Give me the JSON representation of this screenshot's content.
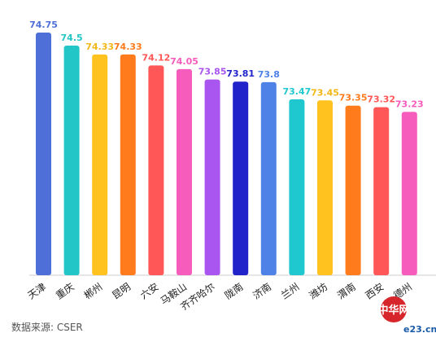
{
  "chart_data": {
    "type": "bar",
    "categories": [
      "天津",
      "重庆",
      "郴州",
      "昆明",
      "六安",
      "马鞍山",
      "齐齐哈尔",
      "陇南",
      "济南",
      "兰州",
      "潍坊",
      "渭南",
      "西安",
      "德州"
    ],
    "values": [
      74.75,
      74.5,
      74.33,
      74.33,
      74.12,
      74.05,
      73.85,
      73.81,
      73.8,
      73.47,
      73.45,
      73.35,
      73.32,
      73.23
    ],
    "value_labels": [
      "74.75",
      "74.5",
      "74.33",
      "74.33",
      "74.12",
      "74.05",
      "73.85",
      "73.81",
      "73.8",
      "73.47",
      "73.45",
      "73.35",
      "73.32",
      "73.23"
    ],
    "colors": [
      "#4f6fd8",
      "#22c6c6",
      "#ffc21f",
      "#ff7b1c",
      "#ff5757",
      "#f55cbc",
      "#a955f0",
      "#1f23c9",
      "#4f82e6",
      "#1fc8cf",
      "#ffc21f",
      "#ff7b1c",
      "#ff5757",
      "#f55cbc"
    ],
    "label_colors": [
      "#4f6fd8",
      "#22c6c6",
      "#f2b81a",
      "#ff7b1c",
      "#ff5757",
      "#f55cbc",
      "#a955f0",
      "#1f23c9",
      "#4f82e6",
      "#1fc8cf",
      "#f2b81a",
      "#ff7b1c",
      "#ff5757",
      "#f55cbc"
    ],
    "grid": false,
    "legend": "none"
  },
  "source_note": "数据来源: CSER",
  "watermark": {
    "site_text": "e23.cn",
    "logo_text": "中华网"
  }
}
